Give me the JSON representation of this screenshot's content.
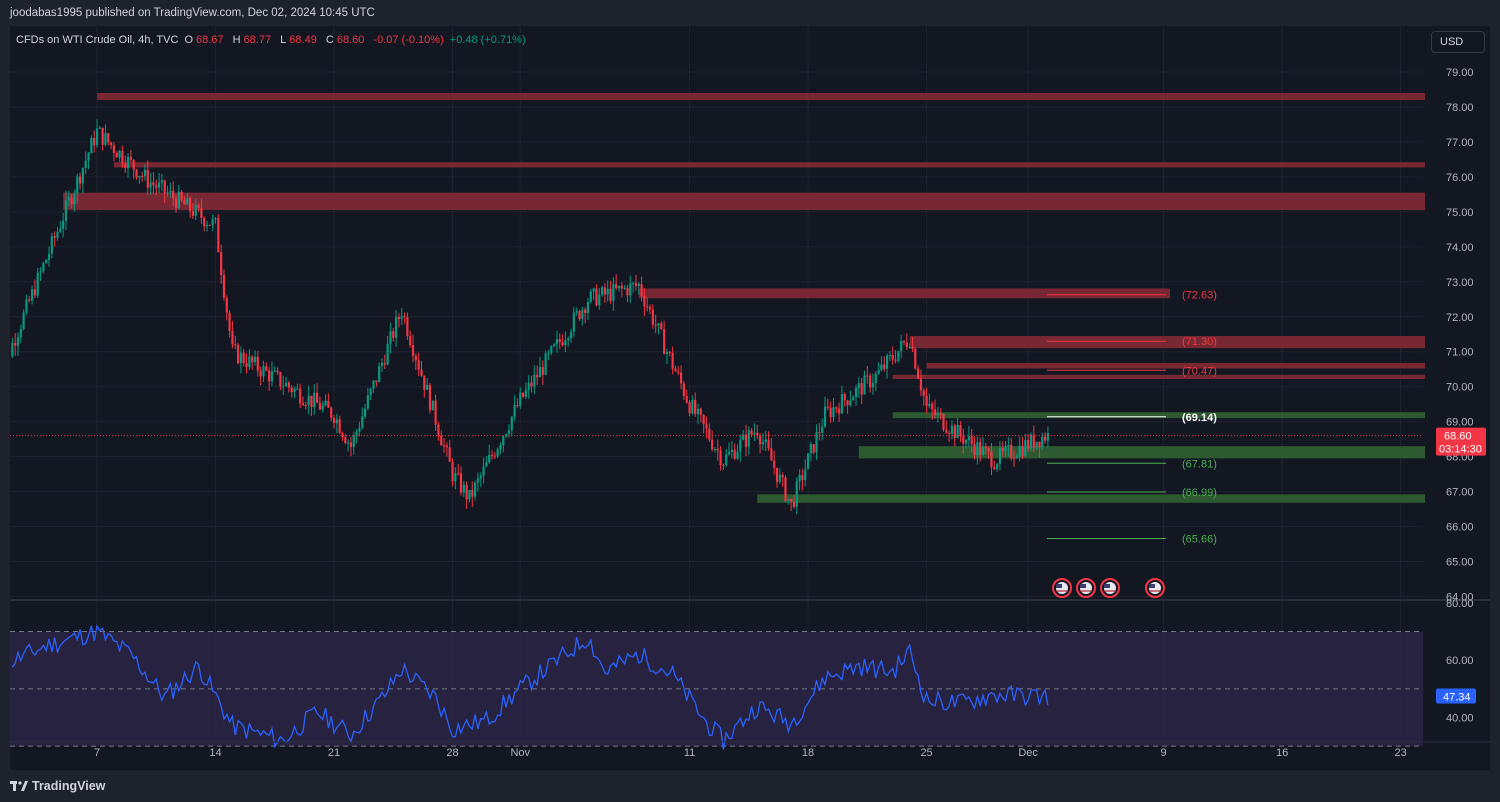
{
  "header": {
    "publisher_line": "joodabas1995 published on TradingView.com, Dec 02, 2024 10:45 UTC"
  },
  "symbol": {
    "name": "CFDs on WTI Crude Oil, 4h, TVC",
    "o_label": "O",
    "o_value": "68.67",
    "h_label": "H",
    "h_value": "68.77",
    "l_label": "L",
    "l_value": "68.49",
    "c_label": "C",
    "c_value": "68.60",
    "change": "-0.07 (-0.10%)",
    "extra_change": "+0.48 (+0.71%)"
  },
  "currency_button": "USD",
  "footer": {
    "logo_text": "TradingView"
  },
  "colors": {
    "background": "#131722",
    "up": "#089981",
    "down": "#f23645",
    "resistance_zone": "#7d2934",
    "support_zone": "#2e5e32",
    "rsi_line": "#2962ff",
    "rsi_band": "#2a2445"
  },
  "chart_data": [
    {
      "type": "candlestick",
      "title": "CFDs on WTI Crude Oil, 4h, TVC",
      "x_tick_labels": [
        "7",
        "14",
        "21",
        "28",
        "Nov",
        "11",
        "18",
        "25",
        "Dec",
        "9",
        "16",
        "23"
      ],
      "y_tick_labels": [
        "79.00",
        "78.00",
        "77.00",
        "76.00",
        "75.00",
        "74.00",
        "73.00",
        "72.00",
        "71.00",
        "70.00",
        "69.00",
        "68.00",
        "67.00",
        "66.00",
        "65.00",
        "64.00"
      ],
      "ylim": [
        63.9,
        79.4
      ],
      "last_price": "68.60",
      "countdown": "03:14:30",
      "key_points": [
        {
          "date": "Oct 1",
          "close": 70.0
        },
        {
          "date": "Oct 7",
          "high": 78.4,
          "close": 77.3
        },
        {
          "date": "Oct 10",
          "close": 75.9
        },
        {
          "date": "Oct 14",
          "close": 74.6
        },
        {
          "date": "Oct 15",
          "close": 71.0
        },
        {
          "date": "Oct 21",
          "close": 69.2
        },
        {
          "date": "Oct 22",
          "low": 68.3
        },
        {
          "date": "Oct 25",
          "high": 72.2
        },
        {
          "date": "Oct 28",
          "close": 67.5
        },
        {
          "date": "Oct 29",
          "low": 66.8
        },
        {
          "date": "Nov 1",
          "close": 69.6
        },
        {
          "date": "Nov 5",
          "high": 72.5
        },
        {
          "date": "Nov 8",
          "high": 72.9
        },
        {
          "date": "Nov 11",
          "close": 69.5
        },
        {
          "date": "Nov 13",
          "low": 67.9
        },
        {
          "date": "Nov 15",
          "close": 68.8
        },
        {
          "date": "Nov 17",
          "low": 66.6
        },
        {
          "date": "Nov 19",
          "close": 69.2
        },
        {
          "date": "Nov 22",
          "close": 70.3
        },
        {
          "date": "Nov 24",
          "high": 71.4
        },
        {
          "date": "Nov 25",
          "close": 69.4
        },
        {
          "date": "Nov 27",
          "close": 68.6
        },
        {
          "date": "Nov 29",
          "low": 67.9
        },
        {
          "date": "Dec 2",
          "close": 68.6
        }
      ],
      "zones": [
        {
          "kind": "resistance",
          "from": 78.2,
          "to": 78.4
        },
        {
          "kind": "resistance",
          "from": 76.27,
          "to": 76.42
        },
        {
          "kind": "resistance",
          "from": 75.05,
          "to": 75.55
        },
        {
          "kind": "resistance",
          "from": 72.53,
          "to": 72.81
        },
        {
          "kind": "resistance",
          "from": 71.1,
          "to": 71.45
        },
        {
          "kind": "resistance",
          "from": 70.52,
          "to": 70.68
        },
        {
          "kind": "resistance",
          "from": 70.22,
          "to": 70.34
        },
        {
          "kind": "support",
          "from": 69.1,
          "to": 69.27
        },
        {
          "kind": "support",
          "from": 67.95,
          "to": 68.3
        },
        {
          "kind": "support",
          "from": 66.68,
          "to": 66.92
        }
      ],
      "levels": [
        {
          "value": 72.63,
          "label": "(72.63)",
          "color": "#f23645"
        },
        {
          "value": 71.3,
          "label": "(71.30)",
          "color": "#f23645"
        },
        {
          "value": 70.47,
          "label": "(70.47)",
          "color": "#f23645"
        },
        {
          "value": 69.14,
          "label": "(69.14)",
          "color": "#ffffff"
        },
        {
          "value": 67.81,
          "label": "(67.81)",
          "color": "#4caf50"
        },
        {
          "value": 66.99,
          "label": "(66.99)",
          "color": "#4caf50"
        },
        {
          "value": 65.66,
          "label": "(65.66)",
          "color": "#4caf50"
        }
      ]
    },
    {
      "type": "line",
      "indicator": "RSI",
      "y_tick_labels": [
        "80.00",
        "60.00",
        "40.00"
      ],
      "ylim": [
        32.5,
        81
      ],
      "band": [
        30,
        70
      ],
      "midline": 50,
      "last_value": "47.34",
      "key_points": [
        {
          "date": "Oct 1",
          "value": 57
        },
        {
          "date": "Oct 4",
          "value": 65
        },
        {
          "date": "Oct 7",
          "value": 70
        },
        {
          "date": "Oct 9",
          "value": 62
        },
        {
          "date": "Oct 11",
          "value": 47
        },
        {
          "date": "Oct 13",
          "value": 58
        },
        {
          "date": "Oct 15",
          "value": 37
        },
        {
          "date": "Oct 18",
          "value": 32
        },
        {
          "date": "Oct 20",
          "value": 42
        },
        {
          "date": "Oct 22",
          "value": 34
        },
        {
          "date": "Oct 24",
          "value": 48
        },
        {
          "date": "Oct 25",
          "value": 57
        },
        {
          "date": "Oct 27",
          "value": 47
        },
        {
          "date": "Oct 28",
          "value": 36
        },
        {
          "date": "Oct 30",
          "value": 39
        },
        {
          "date": "Nov 1",
          "value": 50
        },
        {
          "date": "Nov 5",
          "value": 68
        },
        {
          "date": "Nov 6",
          "value": 56
        },
        {
          "date": "Nov 8",
          "value": 62
        },
        {
          "date": "Nov 10",
          "value": 55
        },
        {
          "date": "Nov 12",
          "value": 38
        },
        {
          "date": "Nov 13",
          "value": 32
        },
        {
          "date": "Nov 15",
          "value": 44
        },
        {
          "date": "Nov 17",
          "value": 38
        },
        {
          "date": "Nov 19",
          "value": 54
        },
        {
          "date": "Nov 21",
          "value": 58
        },
        {
          "date": "Nov 23",
          "value": 56
        },
        {
          "date": "Nov 24",
          "value": 63
        },
        {
          "date": "Nov 25",
          "value": 46
        },
        {
          "date": "Nov 27",
          "value": 45
        },
        {
          "date": "Nov 29",
          "value": 48
        },
        {
          "date": "Dec 2",
          "value": 47.3
        }
      ]
    }
  ]
}
